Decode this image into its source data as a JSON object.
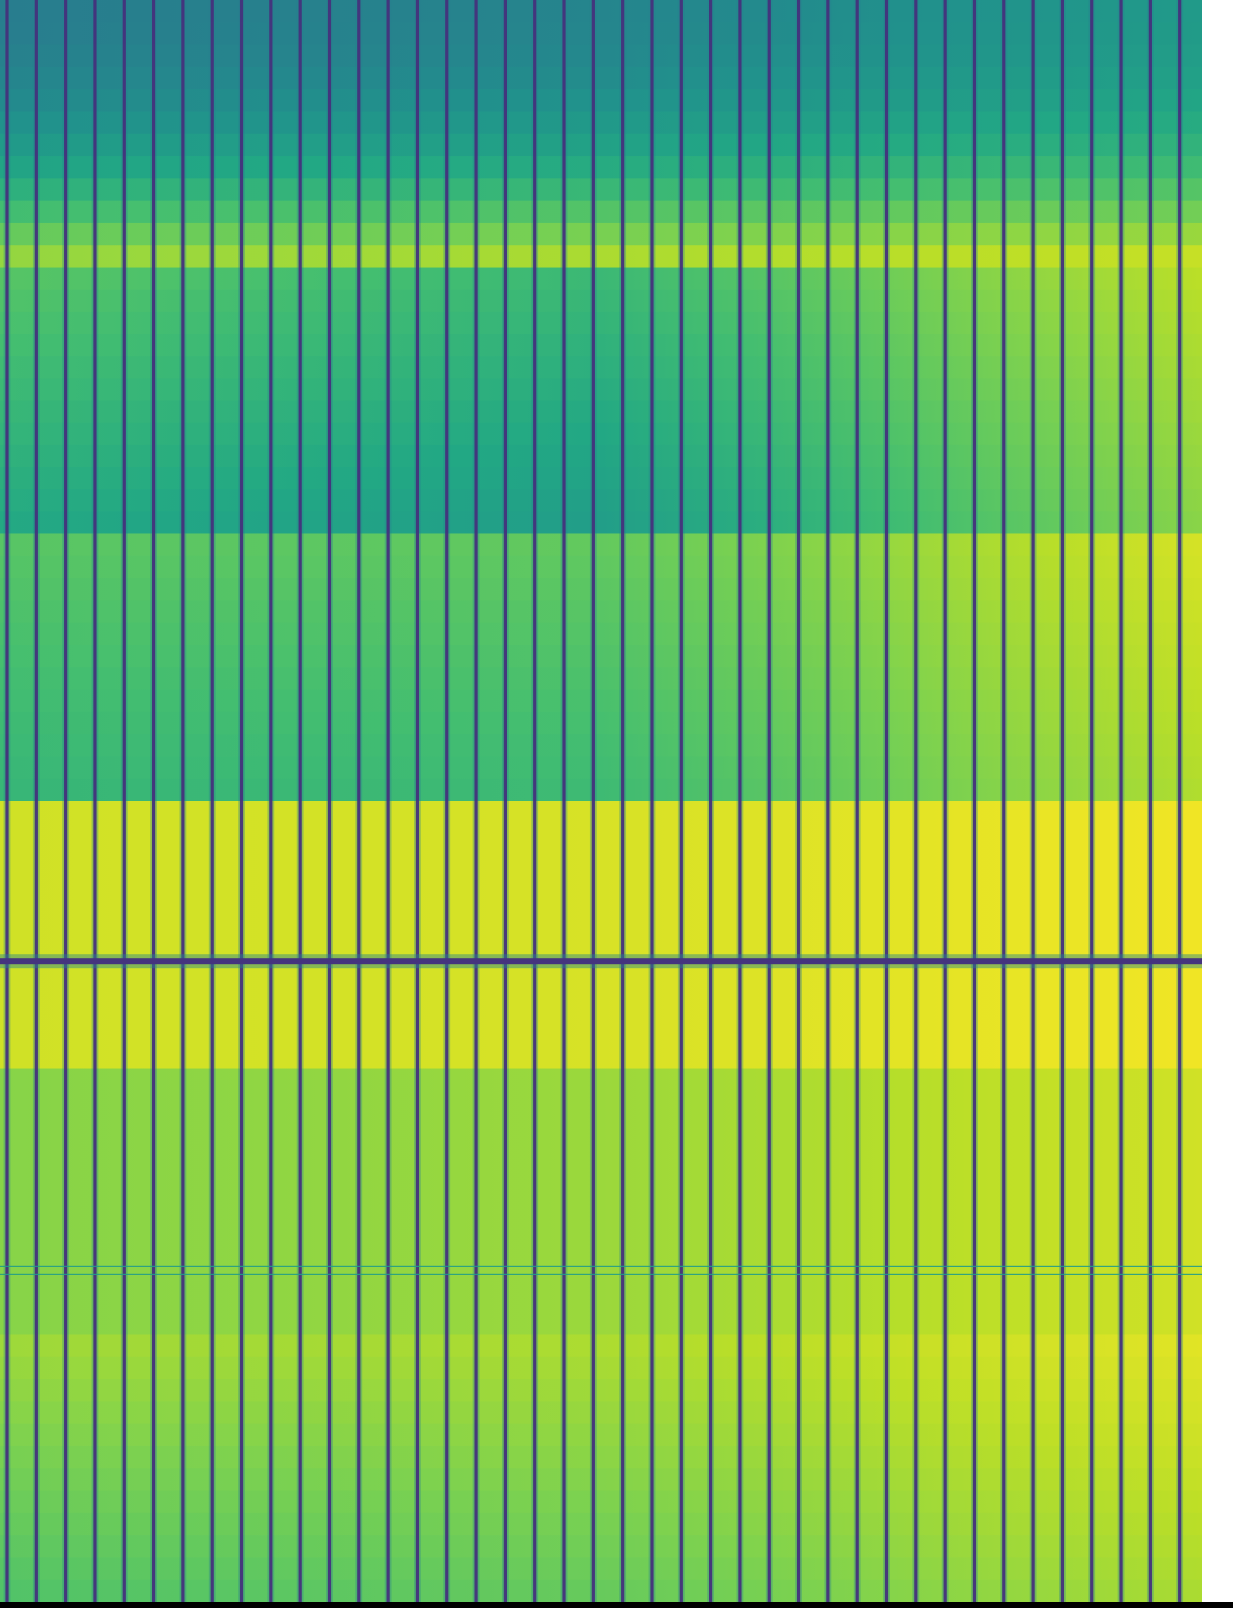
{
  "chart_data": {
    "type": "heatmap",
    "title": "",
    "xlabel": "",
    "ylabel": "",
    "colormap": "viridis",
    "value_range": [
      0,
      1
    ],
    "columns": 41,
    "grid": false,
    "legend": "none",
    "colorbar": false,
    "periodic_column_minimum": 0.0,
    "bands": [
      {
        "row_start": 0.0,
        "row_end": 0.167,
        "left_value": 0.42,
        "mid_value": 0.45,
        "right_value": 0.54,
        "kind": "gradient",
        "bottom_left_value": 0.88,
        "bottom_right_value": 0.95
      },
      {
        "row_start": 0.167,
        "row_end": 0.333,
        "left_value": 0.74,
        "mid_value": 0.68,
        "right_value": 0.9,
        "kind": "vertical-gradient",
        "bottom_left_value": 0.6,
        "bottom_mid_value": 0.55,
        "bottom_right_value": 0.82
      },
      {
        "row_start": 0.333,
        "row_end": 0.5,
        "left_value": 0.74,
        "mid_value": 0.76,
        "right_value": 0.94,
        "kind": "vertical-gradient",
        "bottom_left_value": 0.66,
        "bottom_mid_value": 0.68,
        "bottom_right_value": 0.88
      },
      {
        "row_start": 0.5,
        "row_end": 0.667,
        "left_value": 0.93,
        "mid_value": 0.94,
        "right_value": 0.98,
        "kind": "horizontal",
        "dark_line_row": 0.6
      },
      {
        "row_start": 0.667,
        "row_end": 0.833,
        "left_value": 0.82,
        "mid_value": 0.85,
        "right_value": 0.93,
        "kind": "horizontal",
        "faint_line_row": 0.793
      },
      {
        "row_start": 0.833,
        "row_end": 1.0,
        "left_value": 0.86,
        "mid_value": 0.88,
        "right_value": 0.96,
        "kind": "vertical-gradient",
        "bottom_left_value": 0.72,
        "bottom_mid_value": 0.76,
        "bottom_right_value": 0.87
      }
    ]
  }
}
